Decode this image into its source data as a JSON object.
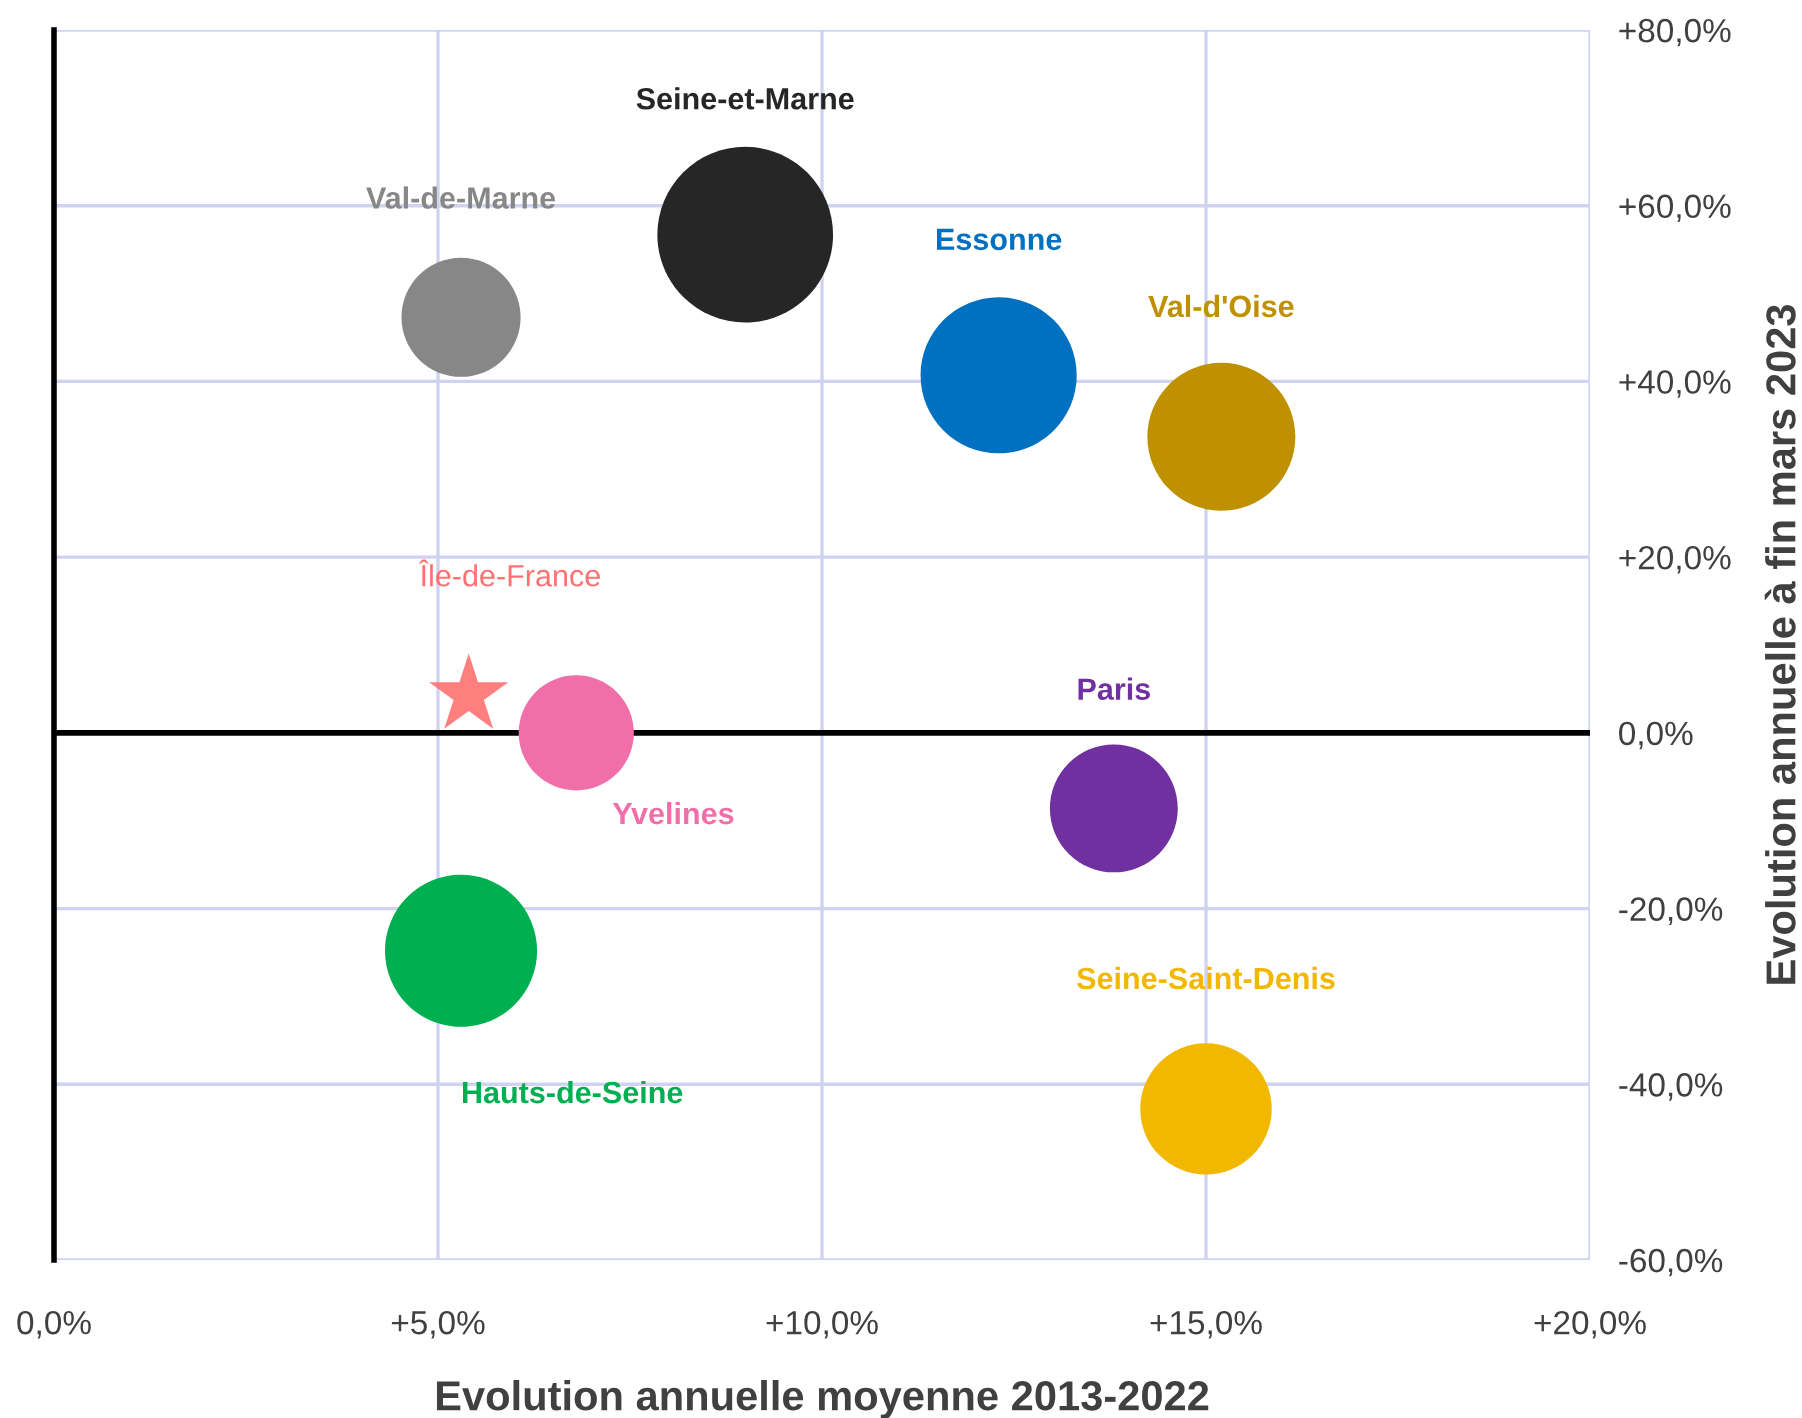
{
  "chart_data": {
    "type": "bubble",
    "xlabel": "Evolution annuelle moyenne 2013-2022",
    "ylabel": "Evolution annuelle à fin mars 2023",
    "xlim": [
      0,
      20
    ],
    "ylim": [
      -60,
      80
    ],
    "xticks": [
      {
        "value": 0,
        "label": "0,0%"
      },
      {
        "value": 5,
        "label": "+5,0%"
      },
      {
        "value": 10,
        "label": "+10,0%"
      },
      {
        "value": 15,
        "label": "+15,0%"
      },
      {
        "value": 20,
        "label": "+20,0%"
      }
    ],
    "yticks": [
      {
        "value": -60,
        "label": "-60,0%"
      },
      {
        "value": -40,
        "label": "-40,0%"
      },
      {
        "value": -20,
        "label": "-20,0%"
      },
      {
        "value": 0,
        "label": "0,0%"
      },
      {
        "value": 20,
        "label": "+20,0%"
      },
      {
        "value": 40,
        "label": "+40,0%"
      },
      {
        "value": 60,
        "label": "+60,0%"
      },
      {
        "value": 80,
        "label": "+80,0%"
      }
    ],
    "grid": true,
    "legend": false,
    "ref_lines": [
      {
        "axis": "y",
        "value": 0,
        "color": "#000000"
      }
    ],
    "series": [
      {
        "name": "Val-de-Marne",
        "color": "#878787",
        "x": [
          5.3
        ],
        "values": [
          47.3
        ],
        "sizes": [
          0.46
        ]
      },
      {
        "name": "Seine-et-Marne",
        "color": "#262626",
        "x": [
          9.0
        ],
        "values": [
          56.7
        ],
        "sizes": [
          1
        ]
      },
      {
        "name": "Essonne",
        "color": "#0070c0",
        "x": [
          12.3
        ],
        "values": [
          40.7
        ],
        "sizes": [
          0.79
        ]
      },
      {
        "name": "Val-d'Oise",
        "color": "#bf9000",
        "x": [
          15.2
        ],
        "values": [
          33.7
        ],
        "sizes": [
          0.71
        ]
      },
      {
        "name": "Yvelines",
        "color": "#f06fa8",
        "x": [
          6.8
        ],
        "values": [
          0.0
        ],
        "sizes": [
          0.43
        ]
      },
      {
        "name": "Paris",
        "color": "#7030a0",
        "x": [
          13.8
        ],
        "values": [
          -8.6
        ],
        "sizes": [
          0.53
        ]
      },
      {
        "name": "Hauts-de-Seine",
        "color": "#00b050",
        "x": [
          5.3
        ],
        "values": [
          -24.8
        ],
        "sizes": [
          0.75
        ]
      },
      {
        "name": "Seine-Saint-Denis",
        "color": "#f2b800",
        "x": [
          15.0
        ],
        "values": [
          -42.8
        ],
        "sizes": [
          0.56
        ]
      },
      {
        "name": "Île-de-France",
        "color": "#ff7070",
        "type": "scatter",
        "marker": "star",
        "x": [
          5.4
        ],
        "values": [
          4.3
        ]
      }
    ]
  }
}
